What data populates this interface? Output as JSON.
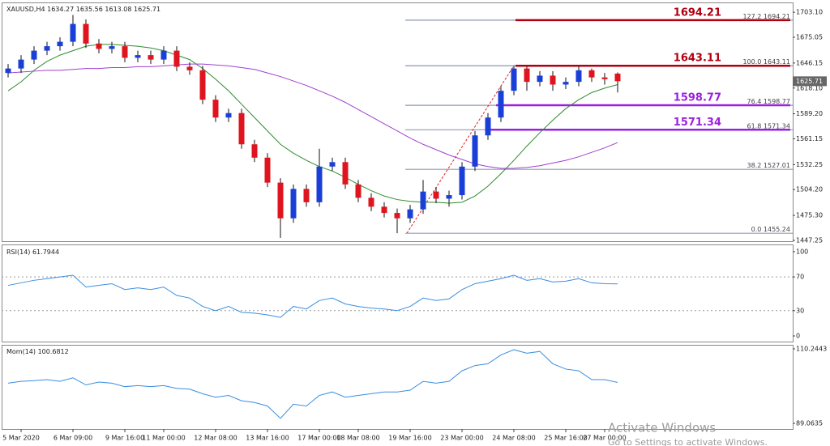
{
  "header": {
    "symbol": "XAUUSD,H4"
  },
  "chart_data": [
    {
      "type": "candlestick",
      "categories": [
        null,
        "5 Mar 2020",
        null,
        null,
        null,
        "6 Mar 09:00",
        null,
        null,
        null,
        "9 Mar 16:00",
        null,
        null,
        "11 Mar 00:00",
        null,
        null,
        null,
        "12 Mar 08:00",
        null,
        null,
        null,
        "13 Mar 16:00",
        null,
        null,
        null,
        "17 Mar 00:00",
        null,
        null,
        "18 Mar 08:00",
        null,
        null,
        null,
        "19 Mar 16:00",
        null,
        null,
        null,
        "23 Mar 00:00",
        null,
        null,
        null,
        "24 Mar 08:00",
        null,
        null,
        null,
        "25 Mar 16:00",
        null,
        null,
        "27 Mar 00:00",
        null
      ],
      "open": [
        1635,
        1640,
        1650,
        1660,
        1665,
        1670,
        1690,
        1668,
        1662,
        1665,
        1652,
        1655,
        1650,
        1660,
        1642,
        1638,
        1605,
        1585,
        1590,
        1555,
        1540,
        1512,
        1472,
        1505,
        1490,
        1530,
        1535,
        1510,
        1495,
        1485,
        1478,
        1472,
        1482,
        1502,
        1494,
        1498,
        1530,
        1565,
        1585,
        1615,
        1640,
        1625,
        1632,
        1622,
        1625,
        1638,
        1630,
        1634.27
      ],
      "high": [
        1645,
        1655,
        1665,
        1670,
        1675,
        1700,
        1695,
        1673,
        1670,
        1670,
        1660,
        1660,
        1665,
        1665,
        1647,
        1643,
        1610,
        1595,
        1595,
        1560,
        1545,
        1517,
        1510,
        1510,
        1550,
        1540,
        1540,
        1515,
        1500,
        1490,
        1483,
        1487,
        1515,
        1507,
        1503,
        1535,
        1570,
        1590,
        1620,
        1643.11,
        1642,
        1637,
        1637,
        1630,
        1642,
        1640,
        1635,
        1635.56
      ],
      "low": [
        1630,
        1635,
        1645,
        1655,
        1660,
        1665,
        1663,
        1657,
        1657,
        1647,
        1647,
        1645,
        1645,
        1637,
        1633,
        1600,
        1580,
        1580,
        1550,
        1535,
        1507,
        1450,
        1467,
        1485,
        1485,
        1525,
        1505,
        1490,
        1480,
        1473,
        1455.24,
        1467,
        1477,
        1489,
        1485,
        1493,
        1525,
        1560,
        1580,
        1610,
        1615,
        1620,
        1615,
        1617,
        1620,
        1625,
        1622,
        1613.08
      ],
      "close": [
        1640,
        1650,
        1660,
        1665,
        1670,
        1690,
        1668,
        1662,
        1665,
        1652,
        1655,
        1650,
        1660,
        1642,
        1638,
        1605,
        1585,
        1590,
        1555,
        1540,
        1512,
        1472,
        1505,
        1490,
        1530,
        1535,
        1510,
        1495,
        1485,
        1478,
        1472,
        1482,
        1502,
        1494,
        1498,
        1530,
        1565,
        1585,
        1615,
        1640,
        1625,
        1632,
        1622,
        1625,
        1638,
        1630,
        1628,
        1625.71
      ],
      "lines": [
        {
          "color": "#2e8b2e",
          "values": [
            1615,
            1625,
            1638,
            1648,
            1655,
            1660,
            1665,
            1667,
            1667,
            1666,
            1665,
            1663,
            1660,
            1655,
            1650,
            1640,
            1628,
            1615,
            1600,
            1585,
            1570,
            1555,
            1545,
            1537,
            1530,
            1525,
            1518,
            1510,
            1503,
            1497,
            1493,
            1491,
            1490,
            1490,
            1489,
            1490,
            1497,
            1508,
            1522,
            1537,
            1553,
            1568,
            1582,
            1595,
            1605,
            1613,
            1618,
            1622
          ]
        },
        {
          "color": "#a040d0",
          "values": [
            1635,
            1636,
            1637,
            1638,
            1638,
            1639,
            1640,
            1640,
            1641,
            1641,
            1642,
            1642,
            1643,
            1644,
            1645,
            1645,
            1644,
            1643,
            1641,
            1639,
            1635,
            1631,
            1626,
            1621,
            1615,
            1609,
            1602,
            1594,
            1586,
            1578,
            1570,
            1562,
            1555,
            1549,
            1543,
            1538,
            1533,
            1530,
            1528,
            1528,
            1529,
            1531,
            1534,
            1537,
            1541,
            1546,
            1551,
            1557
          ]
        }
      ],
      "bull_color": "#1a3fd8",
      "bear_color": "#e0141e",
      "ylim": [
        1446.3,
        1713.2
      ],
      "yticks": [
        {
          "value": 1703.1,
          "label": "1703.10"
        },
        1675.05,
        1646.15,
        {
          "value": 1618.1,
          "label": "1618.10"
        },
        {
          "value": 1589.2,
          "label": "1589.20"
        },
        1561.15,
        1532.25,
        {
          "value": 1504.2,
          "label": "1504.20"
        },
        {
          "value": 1475.3,
          "label": "1475.30"
        },
        1447.25
      ],
      "fib_levels": [
        {
          "level": "127.2",
          "price": 1694.21
        },
        {
          "level": "100.0",
          "price": 1643.11
        },
        {
          "level": "76.4",
          "price": 1598.77
        },
        {
          "level": "61.8",
          "price": 1571.34
        },
        {
          "level": "38.2",
          "price": 1527.01
        },
        {
          "level": "0.0",
          "price": 1455.24
        }
      ],
      "highlights": [
        {
          "price": 1694.21,
          "color": "#b00010"
        },
        {
          "price": 1643.11,
          "color": "#b00010"
        },
        {
          "price": 1598.77,
          "color": "#9a20e0"
        },
        {
          "price": 1571.34,
          "color": "#9a20e0"
        }
      ]
    },
    {
      "type": "line",
      "title": "RSI(14)",
      "color": "#3a8ee0",
      "values": [
        60,
        63,
        66,
        68,
        70,
        72,
        58,
        60,
        62,
        55,
        57,
        55,
        58,
        48,
        45,
        35,
        30,
        35,
        28,
        27,
        25,
        22,
        35,
        32,
        42,
        45,
        38,
        35,
        33,
        32,
        30,
        35,
        45,
        42,
        44,
        55,
        62,
        65,
        68,
        72,
        66,
        68,
        64,
        65,
        68,
        63,
        62,
        61.7944
      ],
      "ylim": [
        -6.7,
        107.6
      ],
      "yticks": [
        100,
        70,
        30,
        0
      ],
      "levels": [
        70,
        30
      ]
    },
    {
      "type": "line",
      "title": "Mom(14)",
      "color": "#3a8ee0",
      "values": [
        100.5,
        101,
        101.2,
        101.5,
        101,
        102,
        100,
        100.8,
        100.5,
        99.5,
        99.8,
        99.5,
        99.8,
        99,
        98.8,
        97.5,
        96.5,
        97,
        95.5,
        95,
        94,
        90.5,
        94.5,
        94,
        97,
        98,
        96.5,
        97,
        97.5,
        98,
        98,
        98.5,
        101,
        100.5,
        101,
        104,
        105.5,
        106,
        108.5,
        110,
        109,
        109.5,
        106,
        104.5,
        104,
        101.5,
        101.5,
        100.6812
      ],
      "ylim": [
        87.47,
        111.155
      ],
      "yticks": [
        110.2443,
        89.0635
      ]
    }
  ],
  "watermark": {
    "title": "Activate Windows",
    "text": "Go to Settings to activate Windows."
  }
}
